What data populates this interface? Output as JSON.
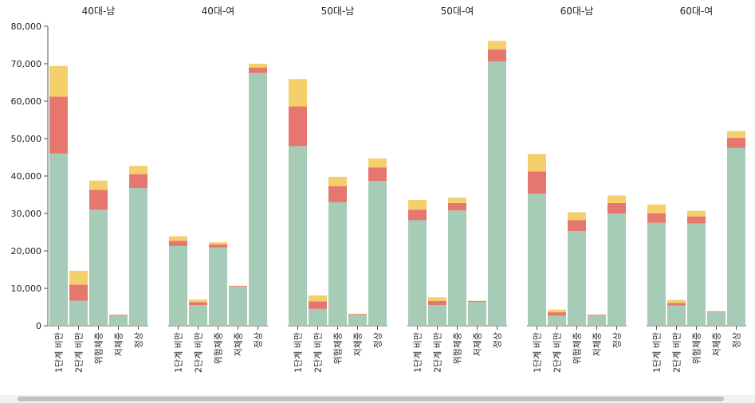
{
  "chart_data": {
    "type": "bar",
    "stacked": true,
    "panels": [
      "40대-남",
      "40대-여",
      "50대-남",
      "50대-여",
      "60대-남",
      "60대-여"
    ],
    "categories": [
      "1단계 비만",
      "2단계 비만",
      "위험체중",
      "저체중",
      "정상"
    ],
    "y_ticks": [
      "0",
      "10,000",
      "20,000",
      "30,000",
      "40,000",
      "50,000",
      "60,000",
      "70,000",
      "80,000"
    ],
    "ylim": [
      0,
      80000
    ],
    "colors": {
      "bottom": "#a6cbb6",
      "middle": "#e5776f",
      "top": "#f4cf6b"
    },
    "series": [
      {
        "name": "bottom",
        "values": [
          [
            46000,
            6700,
            31000,
            2700,
            36800
          ],
          [
            21300,
            5500,
            20900,
            10400,
            67500
          ],
          [
            48000,
            4500,
            33000,
            2900,
            38700
          ],
          [
            28200,
            5500,
            30800,
            6400,
            70600
          ],
          [
            35300,
            2700,
            25300,
            2700,
            30000
          ],
          [
            27500,
            5400,
            27300,
            3600,
            47500
          ]
        ]
      },
      {
        "name": "middle",
        "values": [
          [
            15200,
            4300,
            5300,
            200,
            3700
          ],
          [
            1400,
            800,
            800,
            200,
            1500
          ],
          [
            10600,
            2000,
            4300,
            200,
            3600
          ],
          [
            2800,
            1100,
            2000,
            200,
            3200
          ],
          [
            5900,
            900,
            2900,
            200,
            2800
          ],
          [
            2500,
            700,
            1900,
            200,
            2700
          ]
        ]
      },
      {
        "name": "top",
        "values": [
          [
            8200,
            3700,
            2500,
            100,
            2200
          ],
          [
            1200,
            700,
            600,
            100,
            1000
          ],
          [
            7300,
            1600,
            2500,
            100,
            2400
          ],
          [
            2600,
            1000,
            1400,
            100,
            2300
          ],
          [
            4700,
            700,
            2100,
            100,
            2000
          ],
          [
            2400,
            800,
            1500,
            100,
            1800
          ]
        ]
      }
    ]
  }
}
